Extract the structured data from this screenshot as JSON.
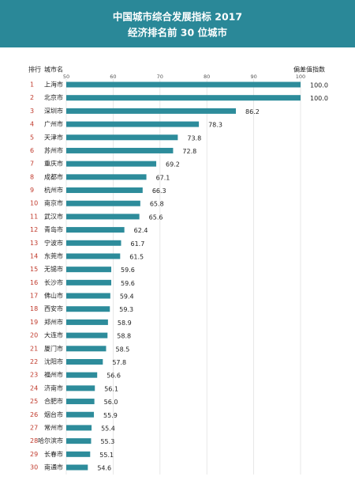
{
  "chart_data": {
    "type": "bar",
    "orientation": "horizontal",
    "title": "中国城市综合发展指标 2017",
    "subtitle": "经济排名前 30 位城市",
    "rank_header": "排行",
    "category_header": "城市名",
    "value_header": "偏差值指数",
    "ranks": [
      1,
      2,
      3,
      4,
      5,
      6,
      7,
      8,
      9,
      10,
      11,
      12,
      13,
      14,
      15,
      16,
      17,
      18,
      19,
      20,
      21,
      22,
      23,
      24,
      25,
      26,
      27,
      28,
      29,
      30
    ],
    "categories": [
      "上海市",
      "北京市",
      "深圳市",
      "广州市",
      "天津市",
      "苏州市",
      "重庆市",
      "成都市",
      "杭州市",
      "南京市",
      "武汉市",
      "青岛市",
      "宁波市",
      "东莞市",
      "无锡市",
      "长沙市",
      "佛山市",
      "西安市",
      "郑州市",
      "大连市",
      "厦门市",
      "沈阳市",
      "福州市",
      "济南市",
      "合肥市",
      "烟台市",
      "常州市",
      "哈尔滨市",
      "长春市",
      "南通市"
    ],
    "values": [
      100.0,
      100.0,
      86.2,
      78.3,
      73.8,
      72.8,
      69.2,
      67.1,
      66.3,
      65.8,
      65.6,
      62.4,
      61.7,
      61.5,
      59.6,
      59.6,
      59.4,
      59.3,
      58.9,
      58.8,
      58.5,
      57.8,
      56.6,
      56.1,
      56.0,
      55.9,
      55.4,
      55.3,
      55.1,
      54.6
    ],
    "value_labels": [
      "100.0",
      "100.0",
      "86.2",
      "78.3",
      "73.8",
      "72.8",
      "69.2",
      "67.1",
      "66.3",
      "65.8",
      "65.6",
      "62.4",
      "61.7",
      "61.5",
      "59.6",
      "59.6",
      "59.4",
      "59.3",
      "58.9",
      "58.8",
      "58.5",
      "57.8",
      "56.6",
      "56.1",
      "56.0",
      "55.9",
      "55.4",
      "55.3",
      "55.1",
      "54.6"
    ],
    "color": "#2d8c9b",
    "header_color": "#2a8898",
    "xlim": [
      50,
      100
    ],
    "xticks": [
      50,
      60,
      70,
      80,
      90,
      100
    ],
    "grid": true
  }
}
